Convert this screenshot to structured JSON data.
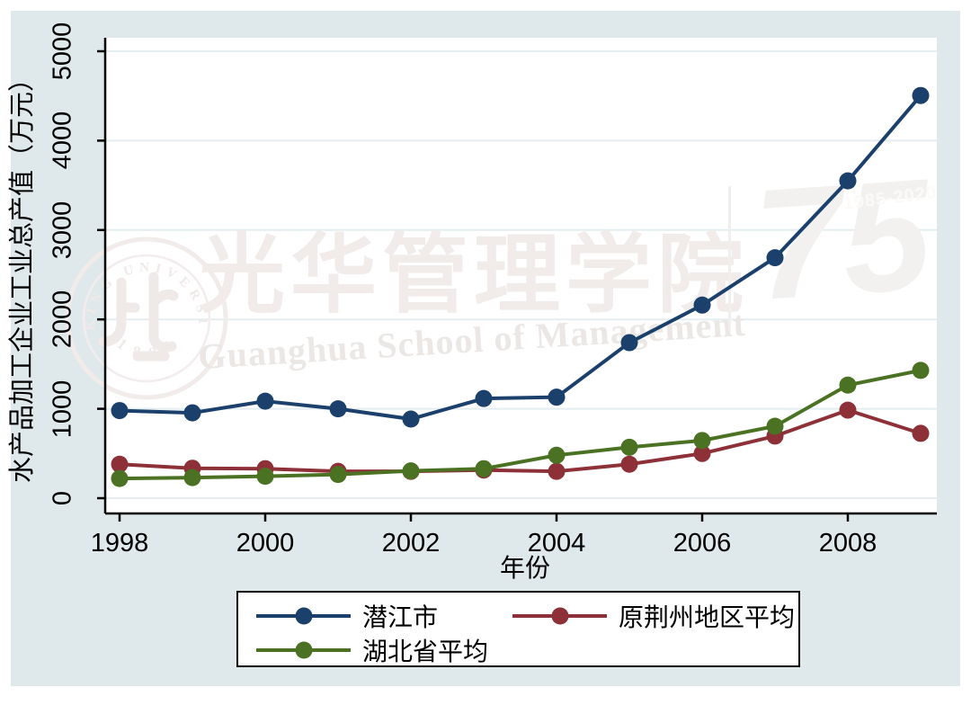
{
  "watermark": {
    "calligraphy": "光华管理学院",
    "english": "Guanghua School of Management",
    "seal_text": "PEKING UNIVERSITY",
    "seal_year": "1 8 9 8",
    "anniversary_number": "75",
    "anniversary_years": "1985-2020"
  },
  "axes": {
    "x": {
      "title": "年份",
      "ticks": [
        1998,
        2000,
        2002,
        2004,
        2006,
        2008
      ]
    },
    "y": {
      "title": "水产品加工企业工业总产值（万元）",
      "ticks": [
        0,
        1000,
        2000,
        3000,
        4000,
        5000
      ]
    }
  },
  "chart_data": {
    "type": "line",
    "title": "",
    "xlabel": "年份",
    "ylabel": "水产品加工企业工业总产值（万元）",
    "x": [
      1998,
      1999,
      2000,
      2001,
      2002,
      2003,
      2004,
      2005,
      2006,
      2007,
      2008,
      2009
    ],
    "xlim": [
      1998,
      2009
    ],
    "ylim": [
      0,
      5000
    ],
    "grid": true,
    "marker": "circle",
    "legend_position": "bottom-center",
    "series": [
      {
        "name": "潜江市",
        "color": "#1b406b",
        "values": [
          980,
          955,
          1085,
          1000,
          885,
          1115,
          1130,
          1740,
          2160,
          2690,
          3550,
          4505
        ]
      },
      {
        "name": "原荆州地区平均",
        "color": "#8e3038",
        "values": [
          380,
          335,
          330,
          300,
          300,
          315,
          300,
          380,
          500,
          695,
          985,
          725
        ]
      },
      {
        "name": "湖北省平均",
        "color": "#4a7222",
        "values": [
          220,
          230,
          245,
          265,
          305,
          330,
          480,
          570,
          645,
          805,
          1265,
          1430
        ]
      }
    ]
  },
  "colors": {
    "graph_background": "#dfe9eb",
    "plot_background": "#ffffff",
    "gridline": "#e4eef1",
    "axis": "#000000",
    "text": "#000000",
    "legend_border": "#000000",
    "watermark_gray": "#f0ebe9"
  }
}
